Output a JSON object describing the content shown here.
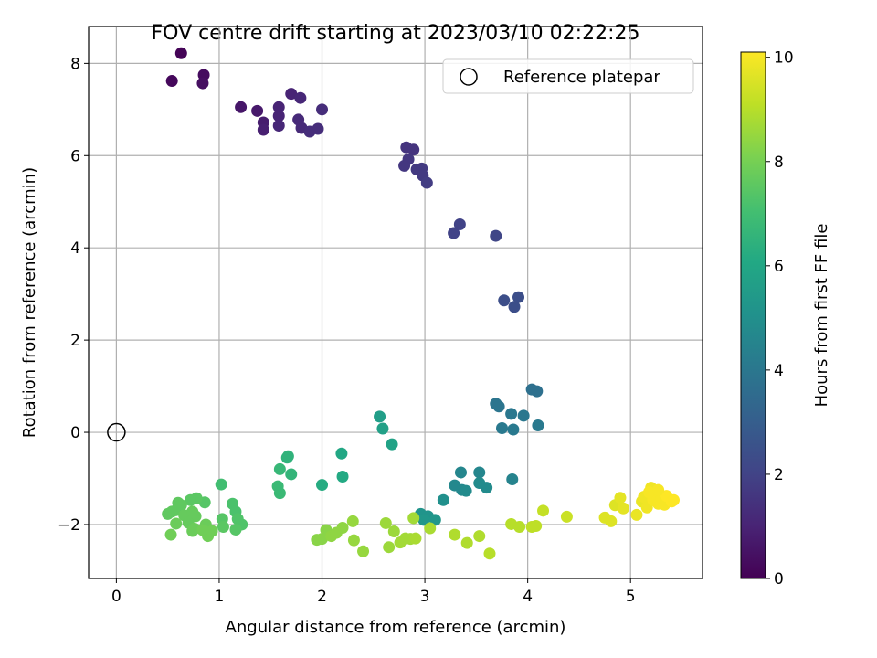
{
  "chart_data": {
    "type": "scatter",
    "title": "FOV centre drift starting at 2023/03/10 02:22:25",
    "xlabel": "Angular distance from reference (arcmin)",
    "ylabel": "Rotation from reference (arcmin)",
    "xlim": [
      -0.27,
      5.7
    ],
    "ylim": [
      -3.17,
      8.8
    ],
    "x_ticks": [
      0,
      1,
      2,
      3,
      4,
      5
    ],
    "y_ticks": [
      -2,
      0,
      2,
      4,
      6,
      8
    ],
    "x_tick_labels": [
      "0",
      "1",
      "2",
      "3",
      "4",
      "5"
    ],
    "y_tick_labels": [
      "−2",
      "0",
      "2",
      "4",
      "6",
      "8"
    ],
    "grid": true,
    "legend": {
      "position": "top-right",
      "entries": [
        {
          "label": "Reference platepar",
          "marker": "open-circle"
        }
      ]
    },
    "reference_point": {
      "x": 0,
      "y": 0
    },
    "colorbar": {
      "label": "Hours from first FF file",
      "colormap": "viridis",
      "range": [
        0,
        10.1
      ],
      "ticks": [
        0,
        2,
        4,
        6,
        8,
        10
      ],
      "tick_labels": [
        "0",
        "2",
        "4",
        "6",
        "8",
        "10"
      ]
    },
    "points": [
      {
        "x": 0.63,
        "y": 8.22,
        "h": 0.1
      },
      {
        "x": 0.54,
        "y": 7.62,
        "h": 0.2
      },
      {
        "x": 0.85,
        "y": 7.75,
        "h": 0.3
      },
      {
        "x": 0.84,
        "y": 7.57,
        "h": 0.4
      },
      {
        "x": 1.21,
        "y": 7.05,
        "h": 0.6
      },
      {
        "x": 1.37,
        "y": 6.97,
        "h": 0.7
      },
      {
        "x": 1.43,
        "y": 6.72,
        "h": 0.8
      },
      {
        "x": 1.43,
        "y": 6.56,
        "h": 0.9
      },
      {
        "x": 1.58,
        "y": 7.05,
        "h": 1.0
      },
      {
        "x": 1.58,
        "y": 6.86,
        "h": 1.0
      },
      {
        "x": 1.58,
        "y": 6.65,
        "h": 1.1
      },
      {
        "x": 1.7,
        "y": 7.34,
        "h": 1.0
      },
      {
        "x": 1.79,
        "y": 7.25,
        "h": 1.1
      },
      {
        "x": 1.77,
        "y": 6.78,
        "h": 1.2
      },
      {
        "x": 1.8,
        "y": 6.6,
        "h": 1.2
      },
      {
        "x": 1.88,
        "y": 6.52,
        "h": 1.3
      },
      {
        "x": 1.96,
        "y": 6.58,
        "h": 1.3
      },
      {
        "x": 2.0,
        "y": 7.0,
        "h": 1.3
      },
      {
        "x": 2.82,
        "y": 6.18,
        "h": 1.5
      },
      {
        "x": 2.89,
        "y": 6.13,
        "h": 1.5
      },
      {
        "x": 2.84,
        "y": 5.92,
        "h": 1.6
      },
      {
        "x": 2.8,
        "y": 5.78,
        "h": 1.6
      },
      {
        "x": 2.92,
        "y": 5.7,
        "h": 1.7
      },
      {
        "x": 2.97,
        "y": 5.72,
        "h": 1.7
      },
      {
        "x": 2.98,
        "y": 5.57,
        "h": 1.7
      },
      {
        "x": 3.02,
        "y": 5.41,
        "h": 1.8
      },
      {
        "x": 3.28,
        "y": 4.32,
        "h": 2.0
      },
      {
        "x": 3.34,
        "y": 4.51,
        "h": 2.0
      },
      {
        "x": 3.69,
        "y": 4.26,
        "h": 2.1
      },
      {
        "x": 3.77,
        "y": 2.86,
        "h": 2.4
      },
      {
        "x": 3.87,
        "y": 2.72,
        "h": 2.4
      },
      {
        "x": 3.91,
        "y": 2.93,
        "h": 2.4
      },
      {
        "x": 4.04,
        "y": 0.93,
        "h": 3.7
      },
      {
        "x": 4.09,
        "y": 0.89,
        "h": 3.7
      },
      {
        "x": 3.69,
        "y": 0.62,
        "h": 3.9
      },
      {
        "x": 3.72,
        "y": 0.56,
        "h": 3.9
      },
      {
        "x": 3.84,
        "y": 0.4,
        "h": 4.0
      },
      {
        "x": 3.96,
        "y": 0.36,
        "h": 4.0
      },
      {
        "x": 3.75,
        "y": 0.09,
        "h": 4.1
      },
      {
        "x": 3.86,
        "y": 0.06,
        "h": 4.1
      },
      {
        "x": 4.1,
        "y": 0.15,
        "h": 4.1
      },
      {
        "x": 3.85,
        "y": -1.02,
        "h": 4.5
      },
      {
        "x": 3.35,
        "y": -0.87,
        "h": 4.6
      },
      {
        "x": 3.53,
        "y": -0.87,
        "h": 4.6
      },
      {
        "x": 3.29,
        "y": -1.15,
        "h": 4.7
      },
      {
        "x": 3.36,
        "y": -1.25,
        "h": 4.7
      },
      {
        "x": 3.4,
        "y": -1.27,
        "h": 4.8
      },
      {
        "x": 3.53,
        "y": -1.1,
        "h": 4.8
      },
      {
        "x": 3.6,
        "y": -1.2,
        "h": 4.8
      },
      {
        "x": 3.18,
        "y": -1.47,
        "h": 5.0
      },
      {
        "x": 2.96,
        "y": -1.77,
        "h": 5.2
      },
      {
        "x": 3.03,
        "y": -1.82,
        "h": 5.2
      },
      {
        "x": 2.99,
        "y": -1.9,
        "h": 5.3
      },
      {
        "x": 3.1,
        "y": -1.9,
        "h": 5.3
      },
      {
        "x": 2.56,
        "y": 0.34,
        "h": 5.6
      },
      {
        "x": 2.59,
        "y": 0.08,
        "h": 5.7
      },
      {
        "x": 2.68,
        "y": -0.26,
        "h": 5.8
      },
      {
        "x": 2.19,
        "y": -0.46,
        "h": 6.0
      },
      {
        "x": 2.2,
        "y": -0.96,
        "h": 6.1
      },
      {
        "x": 2.0,
        "y": -1.14,
        "h": 6.2
      },
      {
        "x": 1.66,
        "y": -0.55,
        "h": 6.5
      },
      {
        "x": 1.67,
        "y": -0.52,
        "h": 6.5
      },
      {
        "x": 1.7,
        "y": -0.91,
        "h": 6.6
      },
      {
        "x": 1.59,
        "y": -0.8,
        "h": 6.7
      },
      {
        "x": 1.57,
        "y": -1.17,
        "h": 6.8
      },
      {
        "x": 1.59,
        "y": -1.32,
        "h": 6.8
      },
      {
        "x": 1.02,
        "y": -1.13,
        "h": 7.0
      },
      {
        "x": 1.13,
        "y": -1.55,
        "h": 7.2
      },
      {
        "x": 1.16,
        "y": -1.72,
        "h": 7.2
      },
      {
        "x": 1.18,
        "y": -1.88,
        "h": 7.3
      },
      {
        "x": 1.22,
        "y": -2.0,
        "h": 7.3
      },
      {
        "x": 1.16,
        "y": -2.11,
        "h": 7.4
      },
      {
        "x": 1.03,
        "y": -1.88,
        "h": 7.4
      },
      {
        "x": 1.04,
        "y": -2.05,
        "h": 7.5
      },
      {
        "x": 0.86,
        "y": -1.52,
        "h": 7.4
      },
      {
        "x": 0.78,
        "y": -1.43,
        "h": 7.5
      },
      {
        "x": 0.72,
        "y": -1.47,
        "h": 7.5
      },
      {
        "x": 0.6,
        "y": -1.53,
        "h": 7.6
      },
      {
        "x": 0.63,
        "y": -1.58,
        "h": 7.6
      },
      {
        "x": 0.58,
        "y": -1.69,
        "h": 7.6
      },
      {
        "x": 0.5,
        "y": -1.77,
        "h": 7.6
      },
      {
        "x": 0.54,
        "y": -1.72,
        "h": 7.6
      },
      {
        "x": 0.66,
        "y": -1.8,
        "h": 7.7
      },
      {
        "x": 0.74,
        "y": -1.72,
        "h": 7.7
      },
      {
        "x": 0.77,
        "y": -1.82,
        "h": 7.7
      },
      {
        "x": 0.7,
        "y": -1.96,
        "h": 7.7
      },
      {
        "x": 0.58,
        "y": -1.98,
        "h": 7.8
      },
      {
        "x": 0.76,
        "y": -2.09,
        "h": 7.8
      },
      {
        "x": 0.74,
        "y": -2.14,
        "h": 7.8
      },
      {
        "x": 0.87,
        "y": -2.0,
        "h": 7.8
      },
      {
        "x": 0.84,
        "y": -2.12,
        "h": 7.9
      },
      {
        "x": 0.89,
        "y": -2.25,
        "h": 7.9
      },
      {
        "x": 0.93,
        "y": -2.14,
        "h": 7.9
      },
      {
        "x": 0.53,
        "y": -2.22,
        "h": 7.9
      },
      {
        "x": 1.95,
        "y": -2.33,
        "h": 8.3
      },
      {
        "x": 2.0,
        "y": -2.31,
        "h": 8.3
      },
      {
        "x": 2.04,
        "y": -2.12,
        "h": 8.3
      },
      {
        "x": 2.09,
        "y": -2.25,
        "h": 8.4
      },
      {
        "x": 2.14,
        "y": -2.18,
        "h": 8.4
      },
      {
        "x": 2.2,
        "y": -2.07,
        "h": 8.4
      },
      {
        "x": 2.3,
        "y": -1.93,
        "h": 8.5
      },
      {
        "x": 2.31,
        "y": -2.34,
        "h": 8.5
      },
      {
        "x": 2.4,
        "y": -2.58,
        "h": 8.5
      },
      {
        "x": 2.62,
        "y": -1.97,
        "h": 8.6
      },
      {
        "x": 2.65,
        "y": -2.49,
        "h": 8.6
      },
      {
        "x": 2.7,
        "y": -2.15,
        "h": 8.6
      },
      {
        "x": 2.76,
        "y": -2.39,
        "h": 8.7
      },
      {
        "x": 2.81,
        "y": -2.3,
        "h": 8.7
      },
      {
        "x": 2.86,
        "y": -2.31,
        "h": 8.7
      },
      {
        "x": 2.89,
        "y": -1.86,
        "h": 8.7
      },
      {
        "x": 2.91,
        "y": -2.3,
        "h": 8.8
      },
      {
        "x": 3.05,
        "y": -2.08,
        "h": 8.8
      },
      {
        "x": 3.29,
        "y": -2.22,
        "h": 8.9
      },
      {
        "x": 3.41,
        "y": -2.4,
        "h": 8.9
      },
      {
        "x": 3.53,
        "y": -2.25,
        "h": 8.9
      },
      {
        "x": 3.63,
        "y": -2.63,
        "h": 9.0
      },
      {
        "x": 3.84,
        "y": -1.99,
        "h": 9.0
      },
      {
        "x": 3.92,
        "y": -2.05,
        "h": 9.0
      },
      {
        "x": 4.04,
        "y": -2.05,
        "h": 9.1
      },
      {
        "x": 4.08,
        "y": -2.03,
        "h": 9.1
      },
      {
        "x": 4.15,
        "y": -1.7,
        "h": 9.2
      },
      {
        "x": 4.38,
        "y": -1.83,
        "h": 9.3
      },
      {
        "x": 4.75,
        "y": -1.85,
        "h": 9.6
      },
      {
        "x": 4.81,
        "y": -1.93,
        "h": 9.6
      },
      {
        "x": 4.85,
        "y": -1.58,
        "h": 9.6
      },
      {
        "x": 4.9,
        "y": -1.42,
        "h": 9.7
      },
      {
        "x": 4.93,
        "y": -1.65,
        "h": 9.7
      },
      {
        "x": 5.06,
        "y": -1.79,
        "h": 9.8
      },
      {
        "x": 5.11,
        "y": -1.5,
        "h": 9.8
      },
      {
        "x": 5.13,
        "y": -1.4,
        "h": 9.9
      },
      {
        "x": 5.16,
        "y": -1.63,
        "h": 9.9
      },
      {
        "x": 5.2,
        "y": -1.2,
        "h": 9.9
      },
      {
        "x": 5.22,
        "y": -1.47,
        "h": 10.0
      },
      {
        "x": 5.24,
        "y": -1.33,
        "h": 10.0
      },
      {
        "x": 5.27,
        "y": -1.55,
        "h": 10.0
      },
      {
        "x": 5.3,
        "y": -1.42,
        "h": 10.0
      },
      {
        "x": 5.33,
        "y": -1.57,
        "h": 10.0
      },
      {
        "x": 5.35,
        "y": -1.38,
        "h": 10.1
      },
      {
        "x": 5.4,
        "y": -1.5,
        "h": 10.1
      },
      {
        "x": 5.18,
        "y": -1.3,
        "h": 10.0
      },
      {
        "x": 5.27,
        "y": -1.25,
        "h": 10.0
      },
      {
        "x": 5.42,
        "y": -1.47,
        "h": 10.1
      }
    ]
  }
}
